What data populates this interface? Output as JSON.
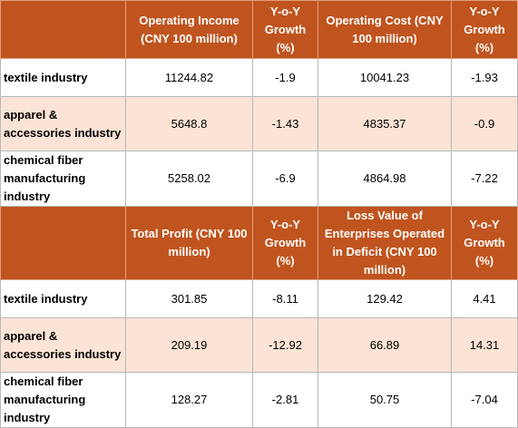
{
  "section1": {
    "headers": [
      "Operating Income (CNY 100 million)",
      "Y-o-Y Growth (%)",
      "Operating Cost (CNY 100 million)",
      "Y-o-Y Growth (%)"
    ],
    "rows": [
      {
        "industry": "textile industry",
        "values": [
          "11244.82",
          "-1.9",
          "10041.23",
          "-1.93"
        ]
      },
      {
        "industry": "apparel & accessories industry",
        "values": [
          "5648.8",
          "-1.43",
          "4835.37",
          "-0.9"
        ]
      },
      {
        "industry": "chemical fiber manufacturing industry",
        "values": [
          "5258.02",
          "-6.9",
          "4864.98",
          "-7.22"
        ]
      }
    ]
  },
  "section2": {
    "headers": [
      "Total Profit (CNY 100 million)",
      "Y-o-Y Growth (%)",
      "Loss Value of Enterprises Operated in Deficit (CNY 100 million)",
      "Y-o-Y Growth (%)"
    ],
    "rows": [
      {
        "industry": "textile industry",
        "values": [
          "301.85",
          "-8.11",
          "129.42",
          "4.41"
        ]
      },
      {
        "industry": "apparel & accessories industry",
        "values": [
          "209.19",
          "-12.92",
          "66.89",
          "14.31"
        ]
      },
      {
        "industry": "chemical fiber manufacturing industry",
        "values": [
          "128.27",
          "-2.81",
          "50.75",
          "-7.04"
        ]
      }
    ]
  },
  "colors": {
    "header_bg": "#c0541f",
    "header_text": "#ffffff",
    "stripe_bg": "#fbe4d6"
  }
}
